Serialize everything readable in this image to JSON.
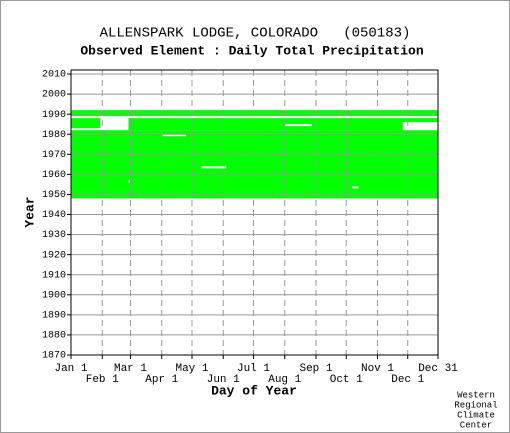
{
  "chart_data": {
    "type": "coverage",
    "title": "ALLENSPARK LODGE, COLORADO   (050183)",
    "subtitle": "Observed Element : Daily Total Precipitation",
    "xlabel": "Day of Year",
    "ylabel": "Year",
    "credit": [
      "Western",
      "Regional",
      "Climate",
      "Center"
    ],
    "color": "#00ff00",
    "gap_color": "#ffffff",
    "grid": true,
    "xlim": [
      1,
      365
    ],
    "xticks": [
      {
        "value": 1,
        "label": "Jan 1"
      },
      {
        "value": 32,
        "label": "Feb 1"
      },
      {
        "value": 60,
        "label": "Mar 1"
      },
      {
        "value": 91,
        "label": "Apr 1"
      },
      {
        "value": 121,
        "label": "May 1"
      },
      {
        "value": 152,
        "label": "Jun 1"
      },
      {
        "value": 182,
        "label": "Jul 1"
      },
      {
        "value": 213,
        "label": "Aug 1"
      },
      {
        "value": 244,
        "label": "Sep 1"
      },
      {
        "value": 274,
        "label": "Oct 1"
      },
      {
        "value": 305,
        "label": "Nov 1"
      },
      {
        "value": 335,
        "label": "Dec 1"
      },
      {
        "value": 365,
        "label": "Dec 31"
      }
    ],
    "ylim": [
      1870,
      2012
    ],
    "yticks": [
      1870,
      1880,
      1890,
      1900,
      1910,
      1920,
      1930,
      1940,
      1950,
      1960,
      1970,
      1980,
      1990,
      2000,
      2010
    ],
    "coverage": [
      {
        "years": [
          1989,
          1991
        ],
        "days": [
          1,
          365
        ]
      },
      {
        "years": [
          1982,
          1987
        ],
        "days": [
          58,
          365
        ]
      },
      {
        "years": [
          1948,
          1981
        ],
        "days": [
          1,
          365
        ]
      },
      {
        "years": [
          1983,
          1987
        ],
        "days": [
          1,
          30
        ]
      }
    ],
    "gaps": [
      {
        "years": [
          1963,
          1963
        ],
        "days": [
          130,
          155
        ]
      },
      {
        "years": [
          1956,
          1956
        ],
        "days": [
          58,
          60
        ]
      },
      {
        "years": [
          1953,
          1953
        ],
        "days": [
          280,
          286
        ]
      },
      {
        "years": [
          1979,
          1979
        ],
        "days": [
          92,
          115
        ]
      },
      {
        "years": [
          1984,
          1984
        ],
        "days": [
          213,
          240
        ]
      },
      {
        "years": [
          1982,
          1985
        ],
        "days": [
          330,
          365
        ]
      }
    ]
  }
}
